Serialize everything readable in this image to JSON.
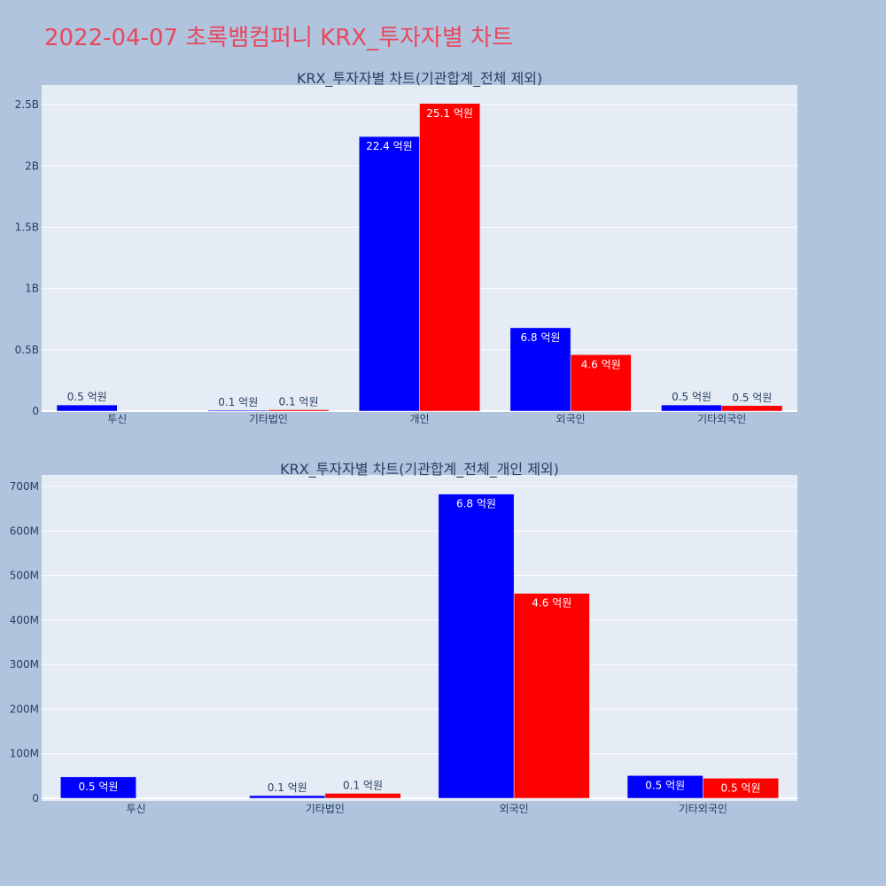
{
  "page": {
    "title": "2022-04-07 초록뱀컴퍼니 KRX_투자자별 차트"
  },
  "colors": {
    "background": "#b0c4de",
    "plot_bg": "#e5ecf6",
    "grid": "#ffffff",
    "title": "#e8485e",
    "series_a": "#0000ff",
    "series_b": "#ff0000"
  },
  "chart_data": [
    {
      "type": "bar",
      "title": "KRX_투자자별 차트(기관합계_전체 제외)",
      "categories": [
        "투신",
        "기타법인",
        "개인",
        "외국인",
        "기타외국인"
      ],
      "series": [
        {
          "color": "#0000ff",
          "values": [
            50000000,
            6000000,
            2240000000,
            680000000,
            50000000
          ],
          "labels": [
            "0.5 억원",
            "0.1 억원",
            "22.4 억원",
            "6.8 억원",
            "0.5 억원"
          ]
        },
        {
          "color": "#ff0000",
          "values": [
            0,
            11000000,
            2510000000,
            460000000,
            45000000
          ],
          "labels": [
            "",
            "0.1 억원",
            "25.1 억원",
            "4.6 억원",
            "0.5 억원"
          ]
        }
      ],
      "ylim": [
        0,
        2660000000
      ],
      "yticks": [
        0,
        500000000,
        1000000000,
        1500000000,
        2000000000,
        2500000000
      ],
      "ytick_labels": [
        "0",
        "0.5B",
        "1B",
        "1.5B",
        "2B",
        "2.5B"
      ],
      "grid": true
    },
    {
      "type": "bar",
      "title": "KRX_투자자별 차트(기관합계_전체_개인 제외)",
      "categories": [
        "투신",
        "기타법인",
        "외국인",
        "기타외국인"
      ],
      "series": [
        {
          "color": "#0000ff",
          "values": [
            48000000,
            6000000,
            683000000,
            51000000
          ],
          "labels": [
            "0.5 억원",
            "0.1 억원",
            "6.8 억원",
            "0.5 억원"
          ]
        },
        {
          "color": "#ff0000",
          "values": [
            0,
            11000000,
            460000000,
            45000000
          ],
          "labels": [
            "",
            "0.1 억원",
            "4.6 억원",
            "0.5 억원"
          ]
        }
      ],
      "ylim": [
        -6000000,
        726000000
      ],
      "yticks": [
        0,
        100000000,
        200000000,
        300000000,
        400000000,
        500000000,
        600000000,
        700000000
      ],
      "ytick_labels": [
        "0",
        "100M",
        "200M",
        "300M",
        "400M",
        "500M",
        "600M",
        "700M"
      ],
      "grid": true
    }
  ]
}
